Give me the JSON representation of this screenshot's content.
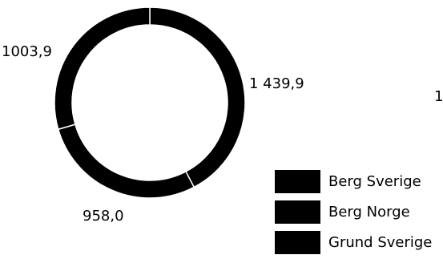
{
  "chart_data": {
    "type": "pie",
    "variant": "donut",
    "categories": [
      "Berg Sverige",
      "Berg Norge",
      "Grund Sverige"
    ],
    "values": [
      1439.9,
      958.0,
      1003.9
    ],
    "value_labels": [
      "1 439,9",
      "958,0",
      "1003,9"
    ],
    "colors": [
      "#000000",
      "#000000",
      "#000000"
    ],
    "separator_color": "#ffffff",
    "start_angle_deg": 0,
    "direction": "clockwise",
    "legend": {
      "placement": "bottom-right",
      "entries": [
        "Berg Sverige",
        "Berg Norge",
        "Grund Sverige"
      ]
    }
  },
  "edge_mark": "1"
}
